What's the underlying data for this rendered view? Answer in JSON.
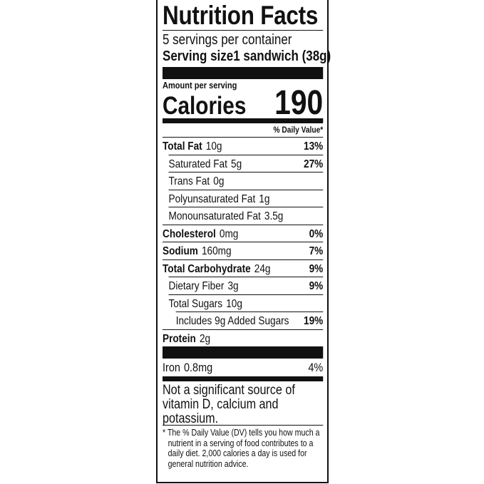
{
  "title": "Nutrition Facts",
  "servings_per_container": "5 servings per container",
  "serving_size_label": "Serving size",
  "serving_size_value": "1 sandwich (38g)",
  "amount_per_serving": "Amount per serving",
  "calories_label": "Calories",
  "calories_value": "190",
  "daily_value_header": "% Daily Value*",
  "nutrients": [
    {
      "label": "Total Fat",
      "amount": "10g",
      "dv": "13%"
    },
    {
      "label": "Saturated Fat",
      "amount": "5g",
      "dv": "27%"
    },
    {
      "label": "Trans Fat",
      "amount": "0g",
      "dv": ""
    },
    {
      "label": "Polyunsaturated Fat",
      "amount": "1g",
      "dv": ""
    },
    {
      "label": "Monounsaturated Fat",
      "amount": "3.5g",
      "dv": ""
    },
    {
      "label": "Cholesterol",
      "amount": "0mg",
      "dv": "0%"
    },
    {
      "label": "Sodium",
      "amount": "160mg",
      "dv": "7%"
    },
    {
      "label": "Total Carbohydrate",
      "amount": "24g",
      "dv": "9%"
    },
    {
      "label": "Dietary Fiber",
      "amount": "3g",
      "dv": "9%"
    },
    {
      "label": "Total Sugars",
      "amount": "10g",
      "dv": ""
    },
    {
      "label": "Includes 9g Added Sugars",
      "amount": "",
      "dv": "19%"
    },
    {
      "label": "Protein",
      "amount": "2g",
      "dv": ""
    }
  ],
  "iron": {
    "label": "Iron",
    "amount": "0.8mg",
    "dv": "4%"
  },
  "not_significant": "Not a significant source of vitamin D, calcium and potassium.",
  "footnote": "* The % Daily Value (DV) tells you how much a nutrient in a serving of food contributes to a daily diet. 2,000 calories a day is used for general nutrition advice."
}
